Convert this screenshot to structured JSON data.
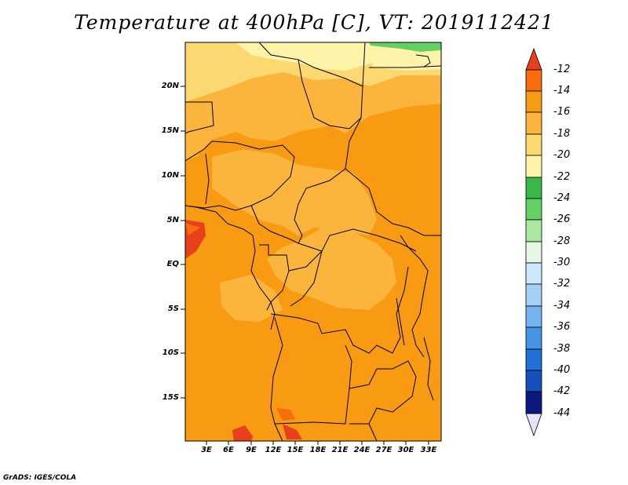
{
  "title": "Temperature at 400hPa [C], VT: 2019112421",
  "credit": "GrADS: IGES/COLA",
  "map": {
    "lat_labels": [
      "20N",
      "15N",
      "10N",
      "5N",
      "EQ",
      "5S",
      "10S",
      "15S"
    ],
    "lon_labels": [
      "3E",
      "6E",
      "9E",
      "12E",
      "15E",
      "18E",
      "21E",
      "24E",
      "27E",
      "30E",
      "33E"
    ]
  },
  "colorbar": {
    "labels": [
      "-12",
      "-14",
      "-16",
      "-18",
      "-20",
      "-22",
      "-24",
      "-26",
      "-28",
      "-30",
      "-32",
      "-34",
      "-36",
      "-38",
      "-40",
      "-42",
      "-44"
    ],
    "colors": [
      "#e8401c",
      "#f86c0c",
      "#f89a12",
      "#fbb43c",
      "#fcd870",
      "#fdf4aa",
      "#38b84a",
      "#64d064",
      "#a8e8a0",
      "#e4f8e6",
      "#cce6fa",
      "#a4d0f6",
      "#74b4ee",
      "#4694e6",
      "#2270d8",
      "#1550bc",
      "#0c1880",
      "#e6e4fa"
    ]
  }
}
